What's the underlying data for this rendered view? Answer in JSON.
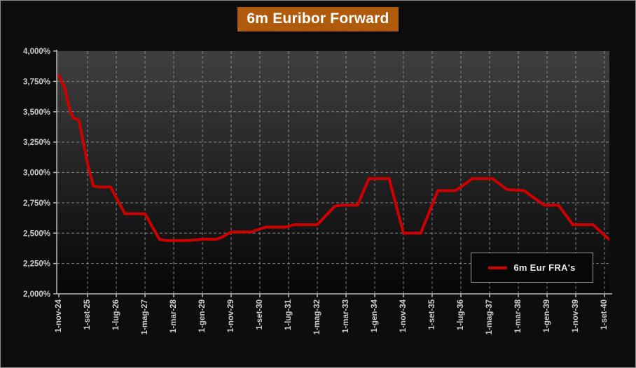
{
  "title": "6m Euribor Forward",
  "legend": {
    "label": "6m Eur FRA's",
    "color": "#ce0000"
  },
  "colors": {
    "background": "#0d0d0d",
    "frame_border": "#8a8a8a",
    "title_bg": "#b05a0e",
    "title_text": "#ffffff",
    "plot_gradient_top": "#3f3f3f",
    "plot_gradient_bottom": "#060606",
    "gridline": "#9a9a9a",
    "axis": "#b8b8b8",
    "tick_label": "#c9c9c9",
    "series_line": "#ce0000",
    "legend_bg": "#070707",
    "legend_border": "#9a9a9a",
    "legend_text": "#e8e8e8"
  },
  "chart_data": {
    "type": "line",
    "title": "6m Euribor Forward",
    "grid": "dashed",
    "legend_position": "bottom-right",
    "x_axis": {
      "unit": "months from 1-nov-24",
      "tick_step_months": 10,
      "max_month": 192,
      "tick_labels": [
        "1-nov-24",
        "1-set-25",
        "1-lug-26",
        "1-mag-27",
        "1-mar-28",
        "1-gen-29",
        "1-nov-29",
        "1-set-30",
        "1-lug-31",
        "1-mag-32",
        "1-mar-33",
        "1-gen-34",
        "1-nov-34",
        "1-set-35",
        "1-lug-36",
        "1-mag-37",
        "1-mar-38",
        "1-gen-39",
        "1-nov-39",
        "1-set-40"
      ]
    },
    "y_axis": {
      "min": 2.0,
      "max": 4.0,
      "step": 0.25,
      "tick_labels": [
        "2,000%",
        "2,250%",
        "2,500%",
        "2,750%",
        "3,000%",
        "3,250%",
        "3,500%",
        "3,750%",
        "4,000%"
      ]
    },
    "series": [
      {
        "name": "6m Eur FRA's",
        "color": "#ce0000",
        "points": [
          [
            0,
            3.8
          ],
          [
            2,
            3.7
          ],
          [
            4,
            3.5
          ],
          [
            5,
            3.45
          ],
          [
            7,
            3.43
          ],
          [
            10,
            3.07
          ],
          [
            12,
            2.89
          ],
          [
            14,
            2.88
          ],
          [
            18,
            2.88
          ],
          [
            23,
            2.66
          ],
          [
            30,
            2.66
          ],
          [
            35,
            2.45
          ],
          [
            37,
            2.44
          ],
          [
            45,
            2.44
          ],
          [
            50,
            2.45
          ],
          [
            55,
            2.45
          ],
          [
            57,
            2.47
          ],
          [
            60,
            2.51
          ],
          [
            67,
            2.51
          ],
          [
            72,
            2.55
          ],
          [
            79,
            2.55
          ],
          [
            82,
            2.57
          ],
          [
            90,
            2.57
          ],
          [
            96,
            2.72
          ],
          [
            98,
            2.73
          ],
          [
            104,
            2.73
          ],
          [
            108,
            2.95
          ],
          [
            115,
            2.95
          ],
          [
            120,
            2.5
          ],
          [
            126,
            2.5
          ],
          [
            132,
            2.85
          ],
          [
            138,
            2.85
          ],
          [
            140,
            2.88
          ],
          [
            144,
            2.95
          ],
          [
            151,
            2.95
          ],
          [
            156,
            2.86
          ],
          [
            162,
            2.85
          ],
          [
            169,
            2.73
          ],
          [
            174,
            2.73
          ],
          [
            179,
            2.57
          ],
          [
            186,
            2.57
          ],
          [
            192,
            2.44
          ]
        ]
      }
    ]
  }
}
